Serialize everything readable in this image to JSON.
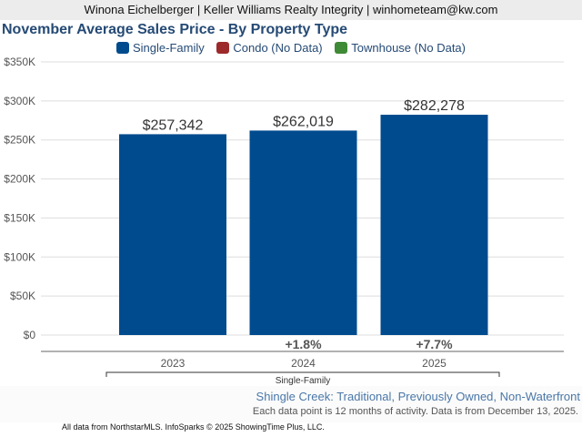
{
  "header": "Winona Eichelberger | Keller Williams Realty Integrity | winhometeam@kw.com",
  "chart_data": {
    "type": "bar",
    "title": "November Average Sales Price - By Property Type",
    "legend": [
      {
        "label": "Single-Family",
        "color": "#004b8d"
      },
      {
        "label": "Condo (No Data)",
        "color": "#9c2a2a"
      },
      {
        "label": "Townhouse (No Data)",
        "color": "#3f8a36"
      }
    ],
    "categories": [
      "2023",
      "2024",
      "2025"
    ],
    "values": [
      257342,
      262019,
      282278
    ],
    "value_labels": [
      "$257,342",
      "$262,019",
      "$282,278"
    ],
    "changes": [
      "",
      "+1.8%",
      "+7.7%"
    ],
    "group_label": "Single-Family",
    "ylim": [
      0,
      350000
    ],
    "yticks": [
      "$0",
      "$50K",
      "$100K",
      "$150K",
      "$200K",
      "$250K",
      "$300K",
      "$350K"
    ],
    "grid": true,
    "legend_position": "top"
  },
  "subtitle": "Shingle Creek: Traditional, Previously Owned, Non-Waterfront",
  "note": "Each data point is 12 months of activity. Data is from December 13, 2025.",
  "credit": "All data from NorthstarMLS. InfoSparks © 2025 ShowingTime Plus, LLC."
}
